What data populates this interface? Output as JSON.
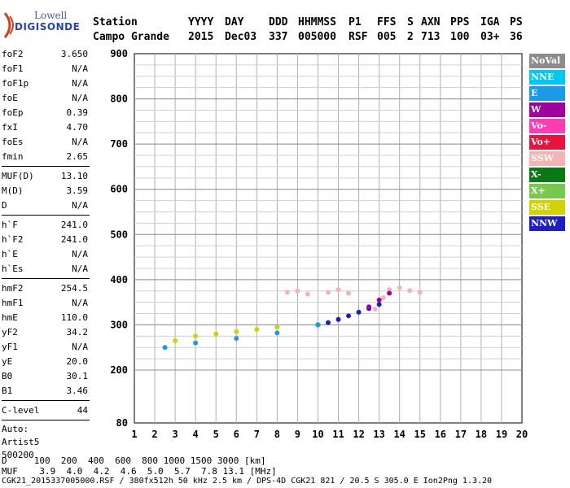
{
  "logo": {
    "line1": "Lowell",
    "line2": "DIGISONDE"
  },
  "header": {
    "labels": [
      "Station",
      "YYYY",
      "DAY",
      "DDD",
      "HHMMSS",
      "P1",
      "FFS",
      "S",
      "AXN",
      "PPS",
      "IGA",
      "PS"
    ],
    "values": [
      "Campo Grande",
      "2015",
      "Dec03",
      "337",
      "005000",
      "RSF",
      "005",
      "2",
      "713",
      "100",
      "03+",
      "36"
    ]
  },
  "params": {
    "group1": [
      {
        "name": "foF2",
        "value": "3.650"
      },
      {
        "name": "foF1",
        "value": "N/A"
      },
      {
        "name": "foF1p",
        "value": "N/A"
      },
      {
        "name": "foE",
        "value": "N/A"
      },
      {
        "name": "foEp",
        "value": "0.39"
      },
      {
        "name": "fxI",
        "value": "4.70"
      },
      {
        "name": "foEs",
        "value": "N/A"
      },
      {
        "name": "fmin",
        "value": "2.65"
      }
    ],
    "group2": [
      {
        "name": "MUF(D)",
        "value": "13.10"
      },
      {
        "name": "M(D)",
        "value": "3.59"
      },
      {
        "name": "D",
        "value": "N/A"
      }
    ],
    "group3": [
      {
        "name": "h`F",
        "value": "241.0"
      },
      {
        "name": "h`F2",
        "value": "241.0"
      },
      {
        "name": "h`E",
        "value": "N/A"
      },
      {
        "name": "h`Es",
        "value": "N/A"
      }
    ],
    "group4": [
      {
        "name": "hmF2",
        "value": "254.5"
      },
      {
        "name": "hmF1",
        "value": "N/A"
      },
      {
        "name": "hmE",
        "value": "110.0"
      },
      {
        "name": "yF2",
        "value": "34.2"
      },
      {
        "name": "yF1",
        "value": "N/A"
      },
      {
        "name": "yE",
        "value": "20.0"
      },
      {
        "name": "B0",
        "value": "30.1"
      },
      {
        "name": "B1",
        "value": "3.46"
      }
    ],
    "clevel": {
      "name": "C-level",
      "value": "44"
    },
    "auto": [
      "Auto:",
      "Artist5",
      "500200"
    ]
  },
  "legend": [
    {
      "label": "NoVal",
      "color": "#8c8c8c"
    },
    {
      "label": "NNE",
      "color": "#00c8f0"
    },
    {
      "label": "E",
      "color": "#1a9be8"
    },
    {
      "label": "W",
      "color": "#a000a0"
    },
    {
      "label": "Vo-",
      "color": "#ff3cb4"
    },
    {
      "label": "Vo+",
      "color": "#e8143c"
    },
    {
      "label": "SSW",
      "color": "#f4b4b4"
    },
    {
      "label": "X-",
      "color": "#0a7814"
    },
    {
      "label": "X+",
      "color": "#78c850"
    },
    {
      "label": "SSE",
      "color": "#d2d200"
    },
    {
      "label": "NNW",
      "color": "#1e1ec8"
    }
  ],
  "bottom": {
    "d_line": "D     100  200  400  600  800 1000 1500 3000 [km]",
    "muf_line": "MUF    3.9  4.0  4.2  4.6  5.0  5.7  7.8 13.1 [MHz]",
    "footer": "CGK21_2015337005000.RSF / 380fx512h 50 kHz 2.5 km / DPS-4D CGK21 821 / 20.5 S 305.0 E Ion2Png 1.3.20"
  },
  "chart_data": {
    "type": "scatter",
    "x_ticks": [
      "1",
      "2",
      "3",
      "4",
      "5",
      "6",
      "7",
      "8",
      "9",
      "10",
      "11",
      "12",
      "13",
      "14",
      "15",
      "16",
      "17",
      "18",
      "19",
      "20"
    ],
    "y_ticks": [
      "80",
      "200",
      "300",
      "400",
      "500",
      "600",
      "700",
      "800",
      "900"
    ],
    "xlim": [
      1,
      20
    ],
    "ylim": [
      80,
      900
    ],
    "grid": true,
    "series": [
      {
        "color": "#f4b4b4",
        "points": [
          [
            8.5,
            372
          ],
          [
            9,
            375
          ],
          [
            9.5,
            368
          ],
          [
            10.5,
            372
          ],
          [
            11,
            378
          ],
          [
            11.5,
            370
          ],
          [
            13.5,
            378
          ],
          [
            14,
            382
          ],
          [
            14.5,
            376
          ],
          [
            15,
            372
          ],
          [
            12.8,
            335
          ],
          [
            13.2,
            360
          ]
        ]
      },
      {
        "color": "#1e1ec8",
        "points": [
          [
            10,
            300
          ],
          [
            10.5,
            305
          ],
          [
            11,
            312
          ],
          [
            11.5,
            320
          ],
          [
            12,
            328
          ],
          [
            12.5,
            336
          ],
          [
            13,
            345
          ]
        ]
      },
      {
        "color": "#d2d200",
        "points": [
          [
            3,
            265
          ],
          [
            4,
            275
          ],
          [
            5,
            280
          ],
          [
            6,
            285
          ],
          [
            7,
            290
          ],
          [
            8,
            295
          ]
        ]
      },
      {
        "color": "#1a9be8",
        "points": [
          [
            2.5,
            250
          ],
          [
            4,
            260
          ],
          [
            6,
            270
          ],
          [
            8,
            282
          ],
          [
            10,
            300
          ]
        ]
      },
      {
        "color": "#a000a0",
        "points": [
          [
            12.5,
            340
          ],
          [
            13,
            355
          ],
          [
            13.5,
            370
          ]
        ]
      }
    ]
  }
}
